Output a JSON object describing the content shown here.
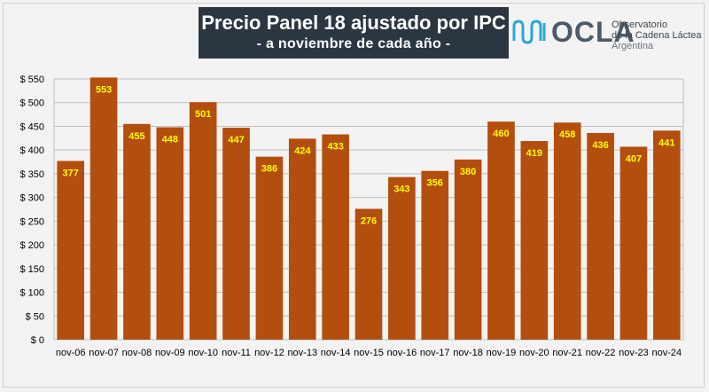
{
  "title": "Precio Panel 18 ajustado por IPC",
  "subtitle": "- a noviembre de cada año -",
  "logo": {
    "name": "OCLA",
    "line1": "Observatorio",
    "line2": "de la Cadena Láctea",
    "line3": "Argentina",
    "color": "#4d5b68",
    "wave_color": "#2aa7d6"
  },
  "colors": {
    "bar": "#b34e0e",
    "value_label": "#ffff00",
    "title_bg": "#2b3641"
  },
  "chart_data": {
    "type": "bar",
    "categories": [
      "nov-06",
      "nov-07",
      "nov-08",
      "nov-09",
      "nov-10",
      "nov-11",
      "nov-12",
      "nov-13",
      "nov-14",
      "nov-15",
      "nov-16",
      "nov-17",
      "nov-18",
      "nov-19",
      "nov-20",
      "nov-21",
      "nov-22",
      "nov-23",
      "nov-24"
    ],
    "values": [
      377,
      553,
      455,
      448,
      501,
      447,
      386,
      424,
      433,
      276,
      343,
      356,
      380,
      460,
      419,
      458,
      436,
      407,
      441
    ],
    "ylim": [
      0,
      550
    ],
    "yticks": [
      0,
      50,
      100,
      150,
      200,
      250,
      300,
      350,
      400,
      450,
      500,
      550
    ],
    "ytick_labels": [
      "$ 0",
      "$ 50",
      "$ 100",
      "$ 150",
      "$ 200",
      "$ 250",
      "$ 300",
      "$ 350",
      "$ 400",
      "$ 450",
      "$ 500",
      "$ 550"
    ],
    "grid": true,
    "data_labels": true
  }
}
